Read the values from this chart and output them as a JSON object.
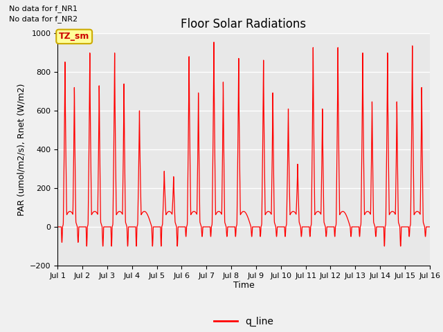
{
  "title": "Floor Solar Radiations",
  "xlabel": "Time",
  "ylabel": "PAR (umol/m2/s), Rnet (W/m2)",
  "ylim": [
    -200,
    1000
  ],
  "xlim": [
    1,
    16
  ],
  "x_tick_labels": [
    "Jul 1",
    "Jul 2",
    "Jul 3",
    "Jul 4",
    "Jul 5",
    "Jul 6",
    "Jul 7",
    "Jul 8",
    "Jul 9",
    "Jul 10",
    "Jul 11",
    "Jul 12",
    "Jul 13",
    "Jul 14",
    "Jul 15",
    "Jul 16"
  ],
  "line_color": "#ff0000",
  "line_label": "q_line",
  "no_data_lines": [
    "No data for f_NR1",
    "No data for f_NR2"
  ],
  "annotation_label": "TZ_sm",
  "annotation_bg": "#ffff99",
  "annotation_border": "#ccaa00",
  "plot_bg": "#e8e8e8",
  "fig_bg": "#f0f0f0",
  "grid_color": "#ffffff",
  "title_fontsize": 12,
  "axis_label_fontsize": 9,
  "tick_fontsize": 8,
  "yticks": [
    -200,
    0,
    200,
    400,
    600,
    800,
    1000
  ],
  "day_data": [
    {
      "peak1": 870,
      "peak2": 730,
      "base": 80,
      "dip": -80
    },
    {
      "peak1": 920,
      "peak2": 740,
      "base": 80,
      "dip": -100
    },
    {
      "peak1": 920,
      "peak2": 750,
      "base": 80,
      "dip": -100
    },
    {
      "peak1": 600,
      "peak2": 0,
      "base": 80,
      "dip": -100
    },
    {
      "peak1": 265,
      "peak2": 230,
      "base": 80,
      "dip": -100
    },
    {
      "peak1": 900,
      "peak2": 700,
      "base": 80,
      "dip": -50
    },
    {
      "peak1": 980,
      "peak2": 760,
      "base": 80,
      "dip": -50
    },
    {
      "peak1": 890,
      "peak2": 0,
      "base": 80,
      "dip": -50
    },
    {
      "peak1": 880,
      "peak2": 700,
      "base": 80,
      "dip": -50
    },
    {
      "peak1": 610,
      "peak2": 300,
      "base": 80,
      "dip": -50
    },
    {
      "peak1": 950,
      "peak2": 610,
      "base": 80,
      "dip": -50
    },
    {
      "peak1": 950,
      "peak2": 0,
      "base": 80,
      "dip": -50
    },
    {
      "peak1": 920,
      "peak2": 650,
      "base": 80,
      "dip": -50
    },
    {
      "peak1": 920,
      "peak2": 650,
      "base": 80,
      "dip": -100
    },
    {
      "peak1": 960,
      "peak2": 730,
      "base": 80,
      "dip": -50
    }
  ]
}
